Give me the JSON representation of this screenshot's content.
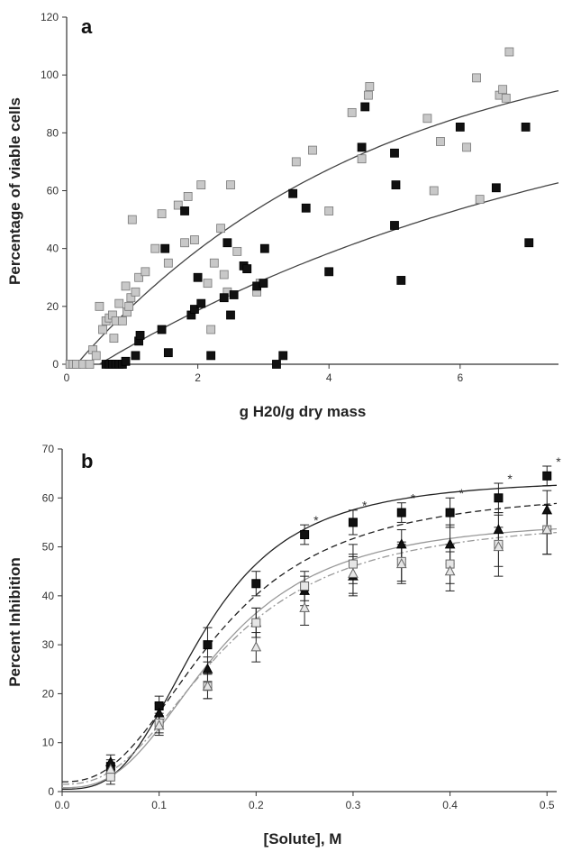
{
  "chart_data": [
    {
      "panel": "a",
      "type": "scatter",
      "xlabel": "g H20/g dry mass",
      "ylabel": "Percentage of viable cells",
      "xlim": [
        0,
        7.5
      ],
      "ylim": [
        0,
        120
      ],
      "xticks": [
        0,
        2,
        4,
        6
      ],
      "yticks": [
        0,
        20,
        40,
        60,
        80,
        100,
        120
      ],
      "grid": false,
      "series": [
        {
          "marker": "square",
          "color": "#c8c8c8",
          "points": [
            [
              0.05,
              0
            ],
            [
              0.1,
              0
            ],
            [
              0.15,
              0
            ],
            [
              0.25,
              0
            ],
            [
              0.35,
              0
            ],
            [
              0.4,
              5
            ],
            [
              0.45,
              3
            ],
            [
              0.5,
              20
            ],
            [
              0.55,
              12
            ],
            [
              0.6,
              15
            ],
            [
              0.65,
              16
            ],
            [
              0.7,
              17
            ],
            [
              0.72,
              9
            ],
            [
              0.75,
              15
            ],
            [
              0.8,
              21
            ],
            [
              0.85,
              15
            ],
            [
              0.9,
              27
            ],
            [
              0.92,
              18
            ],
            [
              0.95,
              20
            ],
            [
              0.98,
              23
            ],
            [
              1.0,
              50
            ],
            [
              1.05,
              25
            ],
            [
              1.1,
              30
            ],
            [
              1.2,
              32
            ],
            [
              1.35,
              40
            ],
            [
              1.45,
              52
            ],
            [
              1.55,
              35
            ],
            [
              1.7,
              55
            ],
            [
              1.8,
              42
            ],
            [
              1.85,
              58
            ],
            [
              1.95,
              43
            ],
            [
              2.05,
              62
            ],
            [
              2.15,
              28
            ],
            [
              2.2,
              12
            ],
            [
              2.25,
              35
            ],
            [
              2.35,
              47
            ],
            [
              2.4,
              31
            ],
            [
              2.45,
              25
            ],
            [
              2.5,
              62
            ],
            [
              2.6,
              39
            ],
            [
              2.75,
              33
            ],
            [
              2.9,
              25
            ],
            [
              2.95,
              28
            ],
            [
              3.5,
              70
            ],
            [
              3.75,
              74
            ],
            [
              4.0,
              53
            ],
            [
              4.35,
              87
            ],
            [
              4.5,
              71
            ],
            [
              4.6,
              93
            ],
            [
              4.62,
              96
            ],
            [
              5.5,
              85
            ],
            [
              5.6,
              60
            ],
            [
              5.7,
              77
            ],
            [
              6.1,
              75
            ],
            [
              6.3,
              57
            ],
            [
              6.25,
              99
            ],
            [
              6.6,
              93
            ],
            [
              6.65,
              95
            ],
            [
              6.7,
              92
            ],
            [
              6.75,
              108
            ]
          ]
        },
        {
          "marker": "square",
          "color": "#111111",
          "points": [
            [
              0.6,
              0
            ],
            [
              0.65,
              0
            ],
            [
              0.7,
              0
            ],
            [
              0.75,
              0
            ],
            [
              0.8,
              0
            ],
            [
              0.85,
              0
            ],
            [
              0.9,
              1
            ],
            [
              1.05,
              3
            ],
            [
              1.1,
              8
            ],
            [
              1.12,
              10
            ],
            [
              1.45,
              12
            ],
            [
              1.5,
              40
            ],
            [
              1.55,
              4
            ],
            [
              1.8,
              53
            ],
            [
              1.9,
              17
            ],
            [
              1.95,
              19
            ],
            [
              2.0,
              30
            ],
            [
              2.05,
              21
            ],
            [
              2.2,
              3
            ],
            [
              2.4,
              23
            ],
            [
              2.45,
              42
            ],
            [
              2.5,
              17
            ],
            [
              2.55,
              24
            ],
            [
              2.7,
              34
            ],
            [
              2.75,
              33
            ],
            [
              2.9,
              27
            ],
            [
              3.0,
              28
            ],
            [
              3.02,
              40
            ],
            [
              3.2,
              0
            ],
            [
              3.3,
              3
            ],
            [
              3.45,
              59
            ],
            [
              3.65,
              54
            ],
            [
              4.0,
              32
            ],
            [
              4.5,
              75
            ],
            [
              4.55,
              89
            ],
            [
              5.0,
              73
            ],
            [
              5.02,
              62
            ],
            [
              5.0,
              48
            ],
            [
              5.1,
              29
            ],
            [
              6.0,
              82
            ],
            [
              6.55,
              61
            ],
            [
              7.0,
              82
            ],
            [
              7.05,
              42
            ]
          ]
        }
      ],
      "fits": [
        {
          "color": "#444444",
          "x0": 0.15,
          "A": 118,
          "k": 0.22
        },
        {
          "color": "#444444",
          "x0": 0.5,
          "A": 105,
          "k": 0.13
        }
      ]
    },
    {
      "panel": "b",
      "type": "line",
      "xlabel": "[Solute], M",
      "ylabel": "Percent Inhibition",
      "xlim": [
        0,
        0.51
      ],
      "ylim": [
        0,
        70
      ],
      "xticks": [
        0.0,
        0.1,
        0.2,
        0.3,
        0.4,
        0.5
      ],
      "yticks": [
        0,
        10,
        20,
        30,
        40,
        50,
        60,
        70
      ],
      "grid": false,
      "x": [
        0.05,
        0.1,
        0.15,
        0.2,
        0.25,
        0.3,
        0.35,
        0.4,
        0.45,
        0.5
      ],
      "series": [
        {
          "marker": "filled-square",
          "color": "#111111",
          "line": "solid",
          "values": [
            5,
            17.5,
            30,
            42.5,
            52.5,
            55,
            57,
            57,
            60,
            64.5
          ],
          "errors": [
            1.5,
            2,
            3.5,
            2.5,
            2,
            2.5,
            2,
            3,
            3,
            2
          ]
        },
        {
          "marker": "filled-triangle",
          "color": "#111111",
          "line": "dashed",
          "values": [
            6,
            16,
            25,
            34.5,
            41,
            44,
            50.5,
            50.5,
            53.5,
            57.5
          ],
          "errors": [
            1.5,
            2,
            2.5,
            3,
            3,
            4,
            3,
            4,
            3,
            4
          ]
        },
        {
          "marker": "open-square",
          "color": "#888888",
          "line": "solid-gray",
          "values": [
            3,
            14,
            21.5,
            34.5,
            42,
            46.5,
            47,
            46.5,
            50.5,
            53.5
          ],
          "errors": [
            1.5,
            2,
            2.5,
            3,
            3,
            4,
            4,
            4,
            6.5,
            5
          ]
        },
        {
          "marker": "open-triangle",
          "color": "#888888",
          "line": "dashdot",
          "values": [
            4.5,
            13.5,
            21.5,
            29.5,
            37.5,
            44.5,
            46.5,
            45,
            50,
            53.5
          ],
          "errors": [
            1.5,
            2,
            2.5,
            3,
            3.5,
            4,
            4,
            4,
            4,
            5
          ]
        }
      ],
      "fits": [
        {
          "line": "solid",
          "color": "#222222",
          "min": 0.5,
          "max": 64,
          "ec50": 0.145,
          "h": 3.0
        },
        {
          "line": "dashed",
          "color": "#222222",
          "min": 2.0,
          "max": 62,
          "ec50": 0.16,
          "h": 2.5
        },
        {
          "line": "solid-gray",
          "color": "#999999",
          "min": 0.8,
          "max": 56,
          "ec50": 0.16,
          "h": 2.7
        },
        {
          "line": "dashdot",
          "color": "#999999",
          "min": 1.5,
          "max": 56,
          "ec50": 0.165,
          "h": 2.5
        }
      ],
      "significance_marker": "*",
      "significance_x": [
        0.25,
        0.3,
        0.35,
        0.4,
        0.45,
        0.5
      ]
    }
  ]
}
